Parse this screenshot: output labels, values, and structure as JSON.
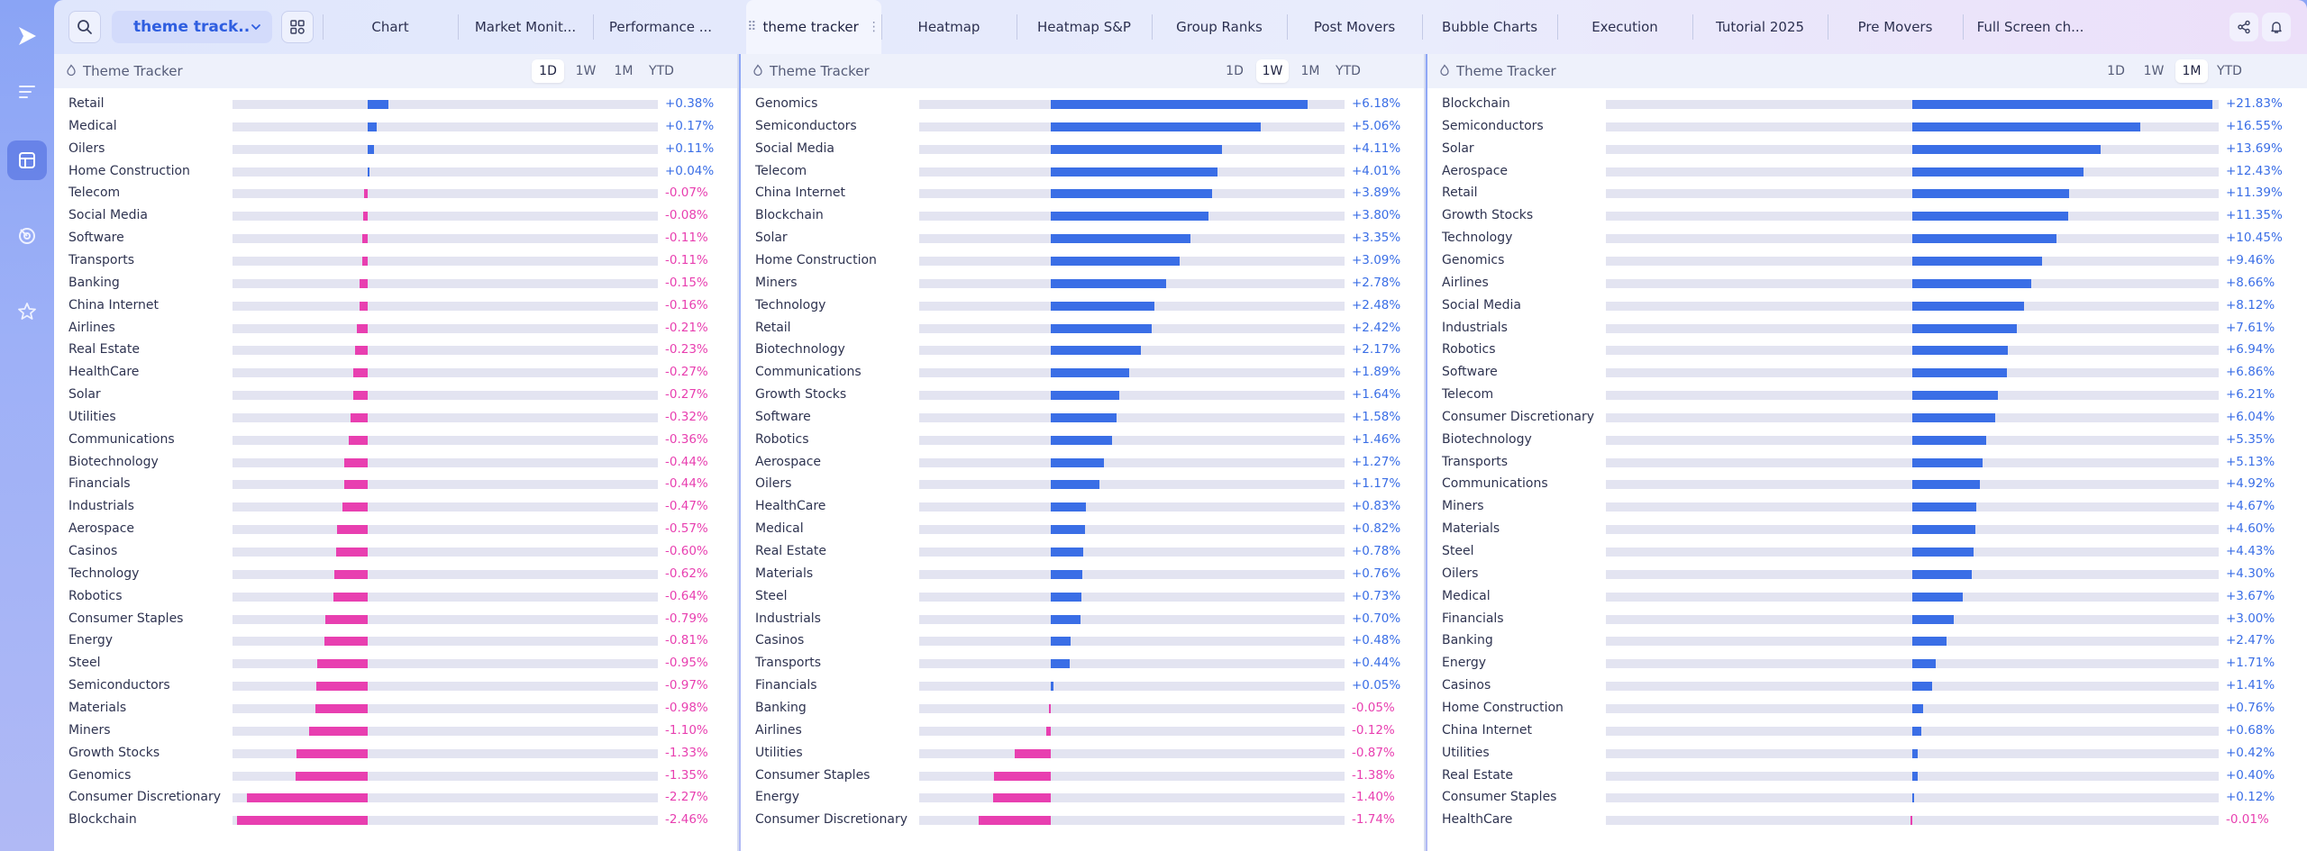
{
  "layout_select": {
    "label": "theme track..."
  },
  "tabs": [
    {
      "label": "Chart"
    },
    {
      "label": "Market Monit..."
    },
    {
      "label": "Performance ..."
    },
    {
      "label": "theme tracker",
      "active": true
    },
    {
      "label": "Heatmap"
    },
    {
      "label": "Heatmap S&P"
    },
    {
      "label": "Group Ranks"
    },
    {
      "label": "Post Movers"
    },
    {
      "label": "Bubble Charts"
    },
    {
      "label": "Execution"
    },
    {
      "label": "Tutorial 2025"
    },
    {
      "label": "Pre Movers"
    },
    {
      "label": "Full Screen ch..."
    }
  ],
  "colors": {
    "positive": "#3a6ee6",
    "negative": "#e83fb0",
    "track": "#e3e4f1"
  },
  "panels": [
    {
      "title": "Theme Tracker",
      "timeframes": [
        "1D",
        "1W",
        "1M",
        "YTD"
      ],
      "active_timeframe": "1D",
      "scale_max": 2.46,
      "rows": [
        {
          "name": "Retail",
          "value": 0.38,
          "label": "+0.38%"
        },
        {
          "name": "Medical",
          "value": 0.17,
          "label": "+0.17%"
        },
        {
          "name": "Oilers",
          "value": 0.11,
          "label": "+0.11%"
        },
        {
          "name": "Home Construction",
          "value": 0.04,
          "label": "+0.04%"
        },
        {
          "name": "Telecom",
          "value": -0.07,
          "label": "-0.07%"
        },
        {
          "name": "Social Media",
          "value": -0.08,
          "label": "-0.08%"
        },
        {
          "name": "Software",
          "value": -0.11,
          "label": "-0.11%"
        },
        {
          "name": "Transports",
          "value": -0.11,
          "label": "-0.11%"
        },
        {
          "name": "Banking",
          "value": -0.15,
          "label": "-0.15%"
        },
        {
          "name": "China Internet",
          "value": -0.16,
          "label": "-0.16%"
        },
        {
          "name": "Airlines",
          "value": -0.21,
          "label": "-0.21%"
        },
        {
          "name": "Real Estate",
          "value": -0.23,
          "label": "-0.23%"
        },
        {
          "name": "HealthCare",
          "value": -0.27,
          "label": "-0.27%"
        },
        {
          "name": "Solar",
          "value": -0.27,
          "label": "-0.27%"
        },
        {
          "name": "Utilities",
          "value": -0.32,
          "label": "-0.32%"
        },
        {
          "name": "Communications",
          "value": -0.36,
          "label": "-0.36%"
        },
        {
          "name": "Biotechnology",
          "value": -0.44,
          "label": "-0.44%"
        },
        {
          "name": "Financials",
          "value": -0.44,
          "label": "-0.44%"
        },
        {
          "name": "Industrials",
          "value": -0.47,
          "label": "-0.47%"
        },
        {
          "name": "Aerospace",
          "value": -0.57,
          "label": "-0.57%"
        },
        {
          "name": "Casinos",
          "value": -0.6,
          "label": "-0.60%"
        },
        {
          "name": "Technology",
          "value": -0.62,
          "label": "-0.62%"
        },
        {
          "name": "Robotics",
          "value": -0.64,
          "label": "-0.64%"
        },
        {
          "name": "Consumer Staples",
          "value": -0.79,
          "label": "-0.79%"
        },
        {
          "name": "Energy",
          "value": -0.81,
          "label": "-0.81%"
        },
        {
          "name": "Steel",
          "value": -0.95,
          "label": "-0.95%"
        },
        {
          "name": "Semiconductors",
          "value": -0.97,
          "label": "-0.97%"
        },
        {
          "name": "Materials",
          "value": -0.98,
          "label": "-0.98%"
        },
        {
          "name": "Miners",
          "value": -1.1,
          "label": "-1.10%"
        },
        {
          "name": "Growth Stocks",
          "value": -1.33,
          "label": "-1.33%"
        },
        {
          "name": "Genomics",
          "value": -1.35,
          "label": "-1.35%"
        },
        {
          "name": "Consumer Discretionary",
          "value": -2.27,
          "label": "-2.27%"
        },
        {
          "name": "Blockchain",
          "value": -2.46,
          "label": "-2.46%"
        }
      ]
    },
    {
      "title": "Theme Tracker",
      "timeframes": [
        "1D",
        "1W",
        "1M",
        "YTD"
      ],
      "active_timeframe": "1W",
      "scale_max": 6.18,
      "rows": [
        {
          "name": "Genomics",
          "value": 6.18,
          "label": "+6.18%"
        },
        {
          "name": "Semiconductors",
          "value": 5.06,
          "label": "+5.06%"
        },
        {
          "name": "Social Media",
          "value": 4.11,
          "label": "+4.11%"
        },
        {
          "name": "Telecom",
          "value": 4.01,
          "label": "+4.01%"
        },
        {
          "name": "China Internet",
          "value": 3.89,
          "label": "+3.89%"
        },
        {
          "name": "Blockchain",
          "value": 3.8,
          "label": "+3.80%"
        },
        {
          "name": "Solar",
          "value": 3.35,
          "label": "+3.35%"
        },
        {
          "name": "Home Construction",
          "value": 3.09,
          "label": "+3.09%"
        },
        {
          "name": "Miners",
          "value": 2.78,
          "label": "+2.78%"
        },
        {
          "name": "Technology",
          "value": 2.48,
          "label": "+2.48%"
        },
        {
          "name": "Retail",
          "value": 2.42,
          "label": "+2.42%"
        },
        {
          "name": "Biotechnology",
          "value": 2.17,
          "label": "+2.17%"
        },
        {
          "name": "Communications",
          "value": 1.89,
          "label": "+1.89%"
        },
        {
          "name": "Growth Stocks",
          "value": 1.64,
          "label": "+1.64%"
        },
        {
          "name": "Software",
          "value": 1.58,
          "label": "+1.58%"
        },
        {
          "name": "Robotics",
          "value": 1.46,
          "label": "+1.46%"
        },
        {
          "name": "Aerospace",
          "value": 1.27,
          "label": "+1.27%"
        },
        {
          "name": "Oilers",
          "value": 1.17,
          "label": "+1.17%"
        },
        {
          "name": "HealthCare",
          "value": 0.83,
          "label": "+0.83%"
        },
        {
          "name": "Medical",
          "value": 0.82,
          "label": "+0.82%"
        },
        {
          "name": "Real Estate",
          "value": 0.78,
          "label": "+0.78%"
        },
        {
          "name": "Materials",
          "value": 0.76,
          "label": "+0.76%"
        },
        {
          "name": "Steel",
          "value": 0.73,
          "label": "+0.73%"
        },
        {
          "name": "Industrials",
          "value": 0.7,
          "label": "+0.70%"
        },
        {
          "name": "Casinos",
          "value": 0.48,
          "label": "+0.48%"
        },
        {
          "name": "Transports",
          "value": 0.44,
          "label": "+0.44%"
        },
        {
          "name": "Financials",
          "value": 0.05,
          "label": "+0.05%"
        },
        {
          "name": "Banking",
          "value": -0.05,
          "label": "-0.05%"
        },
        {
          "name": "Airlines",
          "value": -0.12,
          "label": "-0.12%"
        },
        {
          "name": "Utilities",
          "value": -0.87,
          "label": "-0.87%"
        },
        {
          "name": "Consumer Staples",
          "value": -1.38,
          "label": "-1.38%"
        },
        {
          "name": "Energy",
          "value": -1.4,
          "label": "-1.40%"
        },
        {
          "name": "Consumer Discretionary",
          "value": -1.74,
          "label": "-1.74%"
        }
      ]
    },
    {
      "title": "Theme Tracker",
      "timeframes": [
        "1D",
        "1W",
        "1M",
        "YTD"
      ],
      "active_timeframe": "1M",
      "scale_max": 21.83,
      "rows": [
        {
          "name": "Blockchain",
          "value": 21.83,
          "label": "+21.83%"
        },
        {
          "name": "Semiconductors",
          "value": 16.55,
          "label": "+16.55%"
        },
        {
          "name": "Solar",
          "value": 13.69,
          "label": "+13.69%"
        },
        {
          "name": "Aerospace",
          "value": 12.43,
          "label": "+12.43%"
        },
        {
          "name": "Retail",
          "value": 11.39,
          "label": "+11.39%"
        },
        {
          "name": "Growth Stocks",
          "value": 11.35,
          "label": "+11.35%"
        },
        {
          "name": "Technology",
          "value": 10.45,
          "label": "+10.45%"
        },
        {
          "name": "Genomics",
          "value": 9.46,
          "label": "+9.46%"
        },
        {
          "name": "Airlines",
          "value": 8.66,
          "label": "+8.66%"
        },
        {
          "name": "Social Media",
          "value": 8.12,
          "label": "+8.12%"
        },
        {
          "name": "Industrials",
          "value": 7.61,
          "label": "+7.61%"
        },
        {
          "name": "Robotics",
          "value": 6.94,
          "label": "+6.94%"
        },
        {
          "name": "Software",
          "value": 6.86,
          "label": "+6.86%"
        },
        {
          "name": "Telecom",
          "value": 6.21,
          "label": "+6.21%"
        },
        {
          "name": "Consumer Discretionary",
          "value": 6.04,
          "label": "+6.04%"
        },
        {
          "name": "Biotechnology",
          "value": 5.35,
          "label": "+5.35%"
        },
        {
          "name": "Transports",
          "value": 5.13,
          "label": "+5.13%"
        },
        {
          "name": "Communications",
          "value": 4.92,
          "label": "+4.92%"
        },
        {
          "name": "Miners",
          "value": 4.67,
          "label": "+4.67%"
        },
        {
          "name": "Materials",
          "value": 4.6,
          "label": "+4.60%"
        },
        {
          "name": "Steel",
          "value": 4.43,
          "label": "+4.43%"
        },
        {
          "name": "Oilers",
          "value": 4.3,
          "label": "+4.30%"
        },
        {
          "name": "Medical",
          "value": 3.67,
          "label": "+3.67%"
        },
        {
          "name": "Financials",
          "value": 3.0,
          "label": "+3.00%"
        },
        {
          "name": "Banking",
          "value": 2.47,
          "label": "+2.47%"
        },
        {
          "name": "Energy",
          "value": 1.71,
          "label": "+1.71%"
        },
        {
          "name": "Casinos",
          "value": 1.41,
          "label": "+1.41%"
        },
        {
          "name": "Home Construction",
          "value": 0.76,
          "label": "+0.76%"
        },
        {
          "name": "China Internet",
          "value": 0.68,
          "label": "+0.68%"
        },
        {
          "name": "Utilities",
          "value": 0.42,
          "label": "+0.42%"
        },
        {
          "name": "Real Estate",
          "value": 0.4,
          "label": "+0.40%"
        },
        {
          "name": "Consumer Staples",
          "value": 0.12,
          "label": "+0.12%"
        },
        {
          "name": "HealthCare",
          "value": -0.01,
          "label": "-0.01%"
        }
      ]
    }
  ]
}
